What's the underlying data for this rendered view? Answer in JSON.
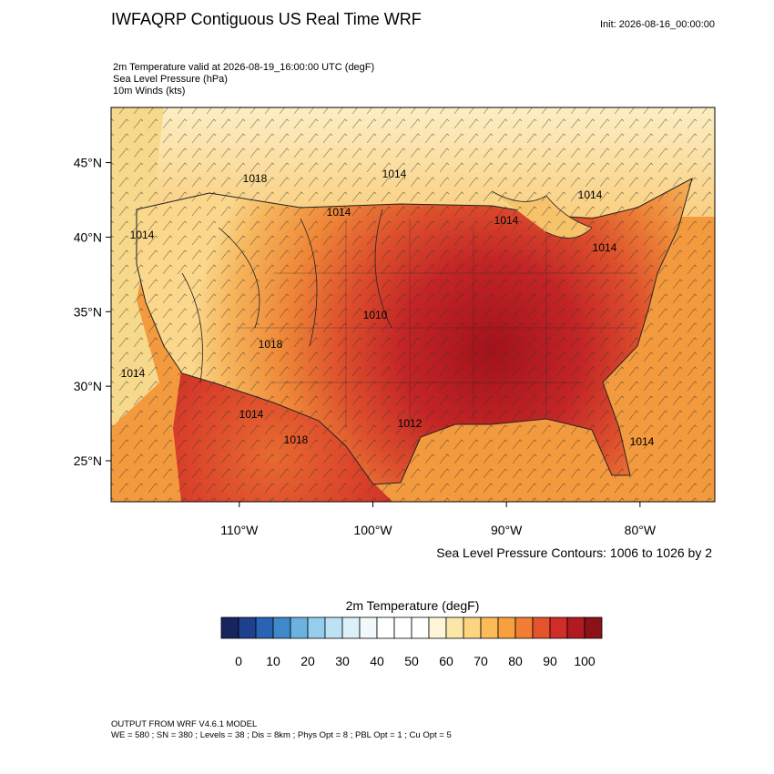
{
  "header": {
    "title": "IWFAQRP Contiguous US Real Time WRF",
    "init": "Init: 2026-08-16_00:00:00"
  },
  "fields": [
    "2m Temperature valid at 2026-08-19_16:00:00 UTC   (degF)",
    "Sea Level Pressure   (hPa)",
    "10m Winds   (kts)"
  ],
  "map": {
    "xlim": [
      -119.6,
      -74.4
    ],
    "ylim": [
      22.25,
      48.7
    ],
    "xticks": [
      {
        "value": -110,
        "label": "110°W"
      },
      {
        "value": -100,
        "label": "100°W"
      },
      {
        "value": -90,
        "label": "90°W"
      },
      {
        "value": -80,
        "label": "80°W"
      }
    ],
    "yticks": [
      {
        "value": 25,
        "label": "25°N"
      },
      {
        "value": 30,
        "label": "30°N"
      },
      {
        "value": 35,
        "label": "35°N"
      },
      {
        "value": 40,
        "label": "40°N"
      },
      {
        "value": 45,
        "label": "45°N"
      }
    ],
    "contour_labels": [
      "1014",
      "1014",
      "1014",
      "1014",
      "1014",
      "1014",
      "1010",
      "1014",
      "1012",
      "1014",
      "1018",
      "1014",
      "1018",
      "1018"
    ],
    "contour_note": "Sea Level Pressure Contours: 1006 to 1026 by 2"
  },
  "colorbar": {
    "title": "2m Temperature  (degF)",
    "colors": [
      "#162460",
      "#1f3f8f",
      "#2a62b4",
      "#3f88c9",
      "#6cb2e0",
      "#96cdef",
      "#bde2f5",
      "#dcf0fa",
      "#f2f9fc",
      "#ffffff",
      "#ffffff",
      "#ffffff",
      "#fff6da",
      "#fde7a8",
      "#fcd482",
      "#fbbb58",
      "#f8a03f",
      "#f07f33",
      "#e4542c",
      "#d02c28",
      "#b21a22",
      "#8c1219"
    ],
    "ticks": [
      0,
      10,
      20,
      30,
      40,
      50,
      60,
      70,
      80,
      90,
      100
    ]
  },
  "footer": [
    "OUTPUT FROM WRF V4.6.1 MODEL",
    "WE = 580 ; SN = 380 ; Levels = 38 ; Dis = 8km ; Phys Opt = 8 ; PBL Opt = 1 ; Cu Opt = 5"
  ]
}
